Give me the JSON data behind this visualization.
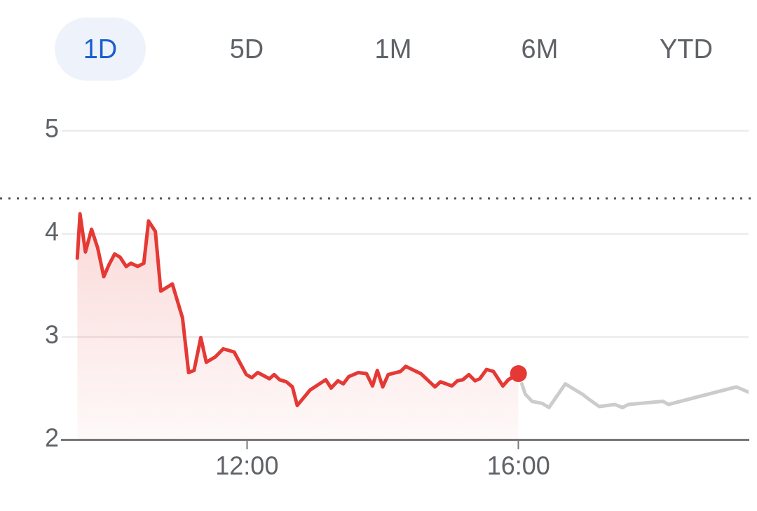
{
  "chart_data": {
    "type": "line",
    "annotations": [
      "1D",
      "5D",
      "1M",
      "6M",
      "YTD"
    ],
    "series": [
      {
        "type": "area",
        "color": "#e53935",
        "x": [
          9.5,
          9.54,
          9.62,
          9.71,
          9.8,
          9.89,
          9.97,
          10.05,
          10.13,
          10.22,
          10.29,
          10.39,
          10.48,
          10.55,
          10.65,
          10.73,
          10.9,
          11.05,
          11.14,
          11.22,
          11.32,
          11.4,
          11.53,
          11.65,
          11.81,
          11.99,
          12.07,
          12.16,
          12.33,
          12.4,
          12.48,
          12.58,
          12.67,
          12.74,
          12.93,
          13.16,
          13.24,
          13.34,
          13.42,
          13.5,
          13.64,
          13.76,
          13.85,
          13.92,
          14.0,
          14.08,
          14.26,
          14.34,
          14.56,
          14.77,
          14.85,
          15.02,
          15.1,
          15.18,
          15.27,
          15.36,
          15.43,
          15.53,
          15.63,
          15.77,
          15.85,
          16.0
        ],
        "values": [
          3.76,
          4.19,
          3.82,
          4.04,
          3.86,
          3.58,
          3.7,
          3.8,
          3.77,
          3.68,
          3.71,
          3.68,
          3.71,
          4.12,
          4.02,
          3.44,
          3.51,
          3.18,
          2.65,
          2.67,
          2.99,
          2.75,
          2.8,
          2.88,
          2.85,
          2.63,
          2.6,
          2.65,
          2.59,
          2.63,
          2.58,
          2.56,
          2.51,
          2.33,
          2.48,
          2.58,
          2.5,
          2.57,
          2.54,
          2.61,
          2.65,
          2.64,
          2.52,
          2.67,
          2.51,
          2.63,
          2.66,
          2.71,
          2.64,
          2.51,
          2.56,
          2.52,
          2.57,
          2.58,
          2.63,
          2.57,
          2.59,
          2.68,
          2.66,
          2.52,
          2.58,
          2.64
        ]
      },
      {
        "color": "#cccccc",
        "x": [
          16.05,
          16.1,
          16.2,
          16.35,
          16.45,
          16.69,
          16.94,
          17.04,
          17.19,
          17.42,
          17.53,
          17.62,
          18.13,
          18.21,
          19.21,
          19.39
        ],
        "values": [
          2.54,
          2.44,
          2.37,
          2.35,
          2.31,
          2.54,
          2.44,
          2.39,
          2.32,
          2.34,
          2.31,
          2.34,
          2.37,
          2.34,
          2.51,
          2.46
        ]
      },
      {
        "type": "scatter",
        "color": "#e53935",
        "marker": "circle",
        "x": [
          16.0
        ],
        "values": [
          2.64
        ]
      }
    ],
    "marker": "none",
    "line_style": "solid",
    "xlim": [
      9.27,
      19.39
    ],
    "xticks": [
      {
        "value": 12,
        "label": "12:00"
      },
      {
        "value": 16,
        "label": "16:00"
      }
    ],
    "ylim": [
      2,
      5
    ],
    "yticks": [
      2,
      3,
      4,
      5
    ],
    "grid": "y",
    "legend": false,
    "ref_lines": [
      {
        "axis": "y",
        "value": 4.34,
        "color": "#555555",
        "line_style": "dotted"
      }
    ]
  }
}
